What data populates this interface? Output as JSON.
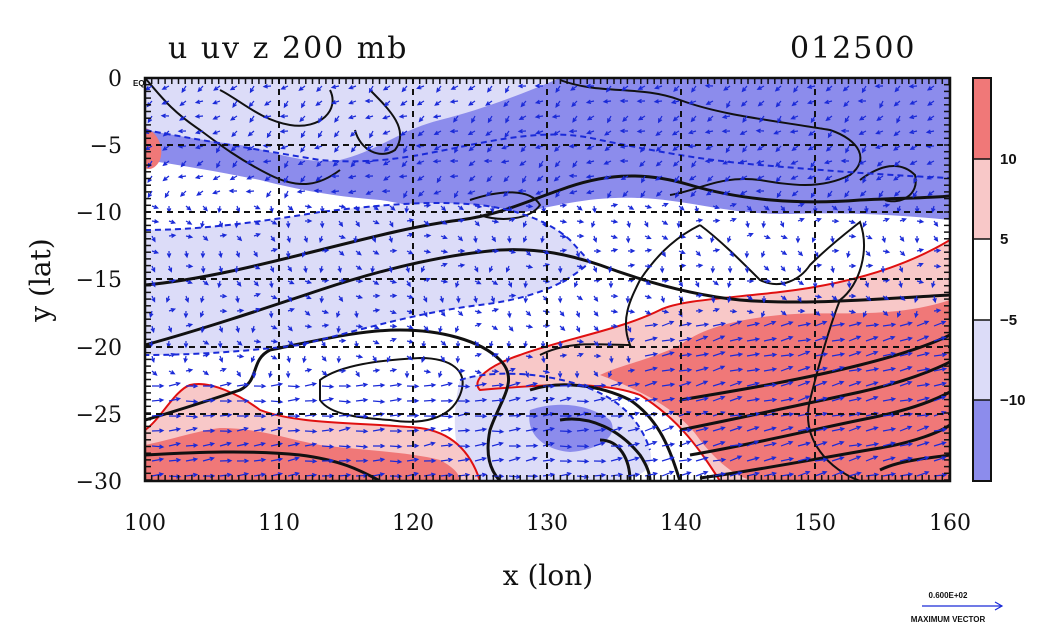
{
  "title": "u uv z 200 mb",
  "timestamp": "012500",
  "corner_label": "EQ",
  "x_axis": {
    "label": "x (lon)",
    "ticks": [
      100,
      110,
      120,
      130,
      140,
      150,
      160
    ],
    "range": [
      100,
      160
    ]
  },
  "y_axis": {
    "label": "y (lat)",
    "ticks": [
      0,
      -5,
      -10,
      -15,
      -20,
      -25,
      -30
    ],
    "tick_labels": [
      "0",
      "−5",
      "−10",
      "−15",
      "−20",
      "−25",
      "−30"
    ],
    "range": [
      -30,
      0
    ]
  },
  "colorbar": {
    "levels": [
      "10",
      "5",
      "−5",
      "−10"
    ],
    "colors": [
      "#f07878",
      "#f8c8c8",
      "#ffffff",
      "#dcdcf8",
      "#8c8cec"
    ]
  },
  "vector_key": {
    "value": "0.600E+02",
    "label": "MAXIMUM VECTOR"
  },
  "colors": {
    "negative": "#8c8cec",
    "weak_negative": "#dcdcf8",
    "positive": "#f07878",
    "weak_positive": "#f8c8c8",
    "vectors": "#1a2ad8",
    "contours": "#111111",
    "positive_contour": "#e01010"
  }
}
